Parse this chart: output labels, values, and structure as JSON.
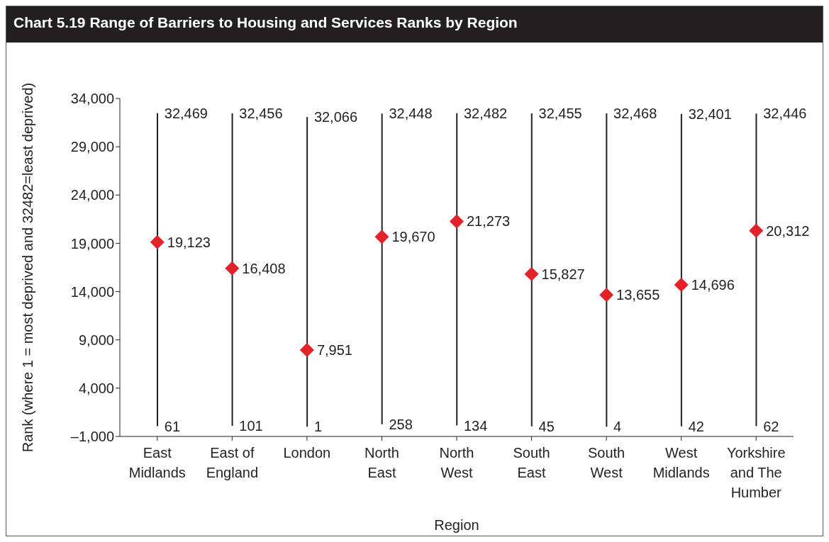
{
  "chart_data": {
    "type": "bar",
    "title": "Chart 5.19  Range of Barriers to Housing and Services Ranks by Region",
    "xlabel": "Region",
    "ylabel": "Rank (where 1 = most deprived and 32482=least deprived)",
    "categories": [
      "East Midlands",
      "East of England",
      "London",
      "North East",
      "North West",
      "South East",
      "South West",
      "West Midlands",
      "Yorkshire and The Humber"
    ],
    "series": [
      {
        "color": "#222222",
        "base": [
          61,
          101,
          1,
          258,
          134,
          45,
          4,
          42,
          62
        ],
        "values": [
          32408,
          32355,
          32065,
          32190,
          32348,
          32410,
          32464,
          32359,
          32384
        ]
      },
      {
        "type": "scatter",
        "color": "#e2232a",
        "marker": "diamond",
        "values": [
          19123,
          16408,
          7951,
          19670,
          21273,
          15827,
          13655,
          14696,
          20312
        ],
        "value_labels": [
          "19,123",
          "16,408",
          "7,951",
          "19,670",
          "21,273",
          "15,827",
          "13,655",
          "14,696",
          "20,312"
        ]
      }
    ],
    "ylim": [
      -1000,
      34000
    ],
    "yticks": [
      {
        "value": -1000,
        "label": "–1,000"
      },
      {
        "value": 4000,
        "label": "4,000"
      },
      {
        "value": 9000,
        "label": "9,000"
      },
      {
        "value": 14000,
        "label": "14,000"
      },
      {
        "value": 19000,
        "label": "19,000"
      },
      {
        "value": 24000,
        "label": "24,000"
      },
      {
        "value": 29000,
        "label": "29,000"
      },
      {
        "value": 34000,
        "label": "34,000"
      }
    ],
    "annotations": [
      {
        "text": "32,469",
        "x": "East Midlands",
        "y": 32469
      },
      {
        "text": "32,456",
        "x": "East of England",
        "y": 32456
      },
      {
        "text": "32,066",
        "x": "London",
        "y": 32066
      },
      {
        "text": "32,448",
        "x": "North East",
        "y": 32448
      },
      {
        "text": "32,482",
        "x": "North West",
        "y": 32482
      },
      {
        "text": "32,455",
        "x": "South East",
        "y": 32455
      },
      {
        "text": "32,468",
        "x": "South West",
        "y": 32468
      },
      {
        "text": "32,401",
        "x": "West Midlands",
        "y": 32401
      },
      {
        "text": "32,446",
        "x": "Yorkshire and The Humber",
        "y": 32446
      },
      {
        "text": "61",
        "x": "East Midlands",
        "y": 61
      },
      {
        "text": "101",
        "x": "East of England",
        "y": 101
      },
      {
        "text": "1",
        "x": "London",
        "y": 1
      },
      {
        "text": "258",
        "x": "North East",
        "y": 258
      },
      {
        "text": "134",
        "x": "North West",
        "y": 134
      },
      {
        "text": "45",
        "x": "South East",
        "y": 45
      },
      {
        "text": "4",
        "x": "South West",
        "y": 4
      },
      {
        "text": "42",
        "x": "West Midlands",
        "y": 42
      },
      {
        "text": "62",
        "x": "Yorkshire and The Humber",
        "y": 62
      }
    ]
  }
}
